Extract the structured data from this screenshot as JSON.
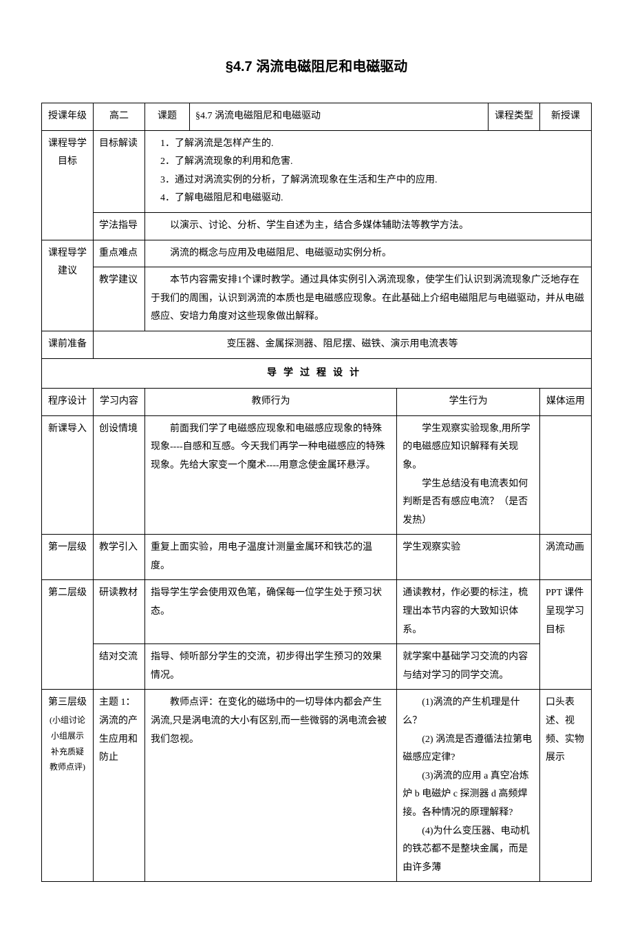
{
  "title": "§4.7 涡流电磁阻尼和电磁驱动",
  "row1": {
    "label1": "授课年级",
    "value1": "高二",
    "label2": "课题",
    "value2": "§4.7 涡流电磁阻尼和电磁驱动",
    "label3": "课程类型",
    "value3": "新授课"
  },
  "objectives": {
    "label": "课程导学目标",
    "sub1_label": "目标解读",
    "sub1_items": {
      "i1": "了解涡流是怎样产生的.",
      "i2": "了解涡流现象的利用和危害.",
      "i3": "通过对涡流实例的分析，了解涡流现象在生活和生产中的应用.",
      "i4": "了解电磁阻尼和电磁驱动."
    },
    "sub2_label": "学法指导",
    "sub2_content": "以演示、讨论、分析、学生自述为主，结合多媒体辅助法等教学方法。"
  },
  "suggestions": {
    "label": "课程导学建议",
    "sub1_label": "重点难点",
    "sub1_content": "涡流的概念与应用及电磁阻尼、电磁驱动实例分析。",
    "sub2_label": "教学建议",
    "sub2_content": "本节内容需安排1个课时教学。通过具体实例引入涡流现象，使学生们认识到涡流现象广泛地存在于我们的周围，认识到涡流的本质也是电磁感应现象。在此基础上介绍电磁阻尼与电磁驱动，并从电磁感应、安培力角度对这些现象做出解释。"
  },
  "preparation": {
    "label": "课前准备",
    "content": "变压器、金属探测器、阻尼摆、磁铁、演示用电流表等"
  },
  "process_header": "导学过程设计",
  "process_cols": {
    "c1": "程序设计",
    "c2": "学习内容",
    "c3": "教师行为",
    "c4": "学生行为",
    "c5": "媒体运用"
  },
  "rows": {
    "r1": {
      "c1": "新课导入",
      "c2": "创设情境",
      "c3": "前面我们学了电磁感应现象和电磁感应现象的特殊现象----自感和互感。今天我们再学一种电磁感应的特殊现象。先给大家变一个魔术----用意念使金属环悬浮。",
      "c4_p1": "学生观察实验现象,用所学的电磁感应知识解释有关现象。",
      "c4_p2": "学生总结没有电流表如何判断是否有感应电流？（是否发热）",
      "c5": ""
    },
    "r2": {
      "c1": "第一层级",
      "c2": "教学引入",
      "c3": "重复上面实验，用电子温度计测量金属环和铁芯的温度。",
      "c4": "学生观察实验",
      "c5": "涡流动画"
    },
    "r3": {
      "c1": "第二层级",
      "c2a": "研读教材",
      "c3a": "指导学生学会使用双色笔，确保每一位学生处于预习状态。",
      "c4a": "通读教材，作必要的标注，梳理出本节内容的大致知识体系。",
      "c5a": "PPT 课件呈现学习目标",
      "c2b": "结对交流",
      "c3b": "指导、倾听部分学生的交流，初步得出学生预习的效果情况。",
      "c4b": "就学案中基础学习交流的内容与结对学习的同学交流。"
    },
    "r4": {
      "c1_main": "第三层级",
      "c1_sub": "(小组讨论 小组展示 补充质疑 教师点评)",
      "c2": "主题 1：涡流的产生应用和防止",
      "c3": "教师点评：在变化的磁场中的一切导体内都会产生涡流,只是涡电流的大小有区别,而一些微弱的涡电流会被我们忽视。",
      "c4_p1": "(1)涡流的产生机理是什么？",
      "c4_p2": "(2) 涡流是否遵循法拉第电磁感应定律?",
      "c4_p3": "(3)涡流的应用 a 真空冶炼炉 b 电磁炉 c 探测器 d 高频焊接。各种情况的原理解释?",
      "c4_p4": "(4)为什么变压器、电动机的铁芯都不是整块金属，而是由许多薄",
      "c5": "口头表述、视频、实物展示"
    }
  }
}
